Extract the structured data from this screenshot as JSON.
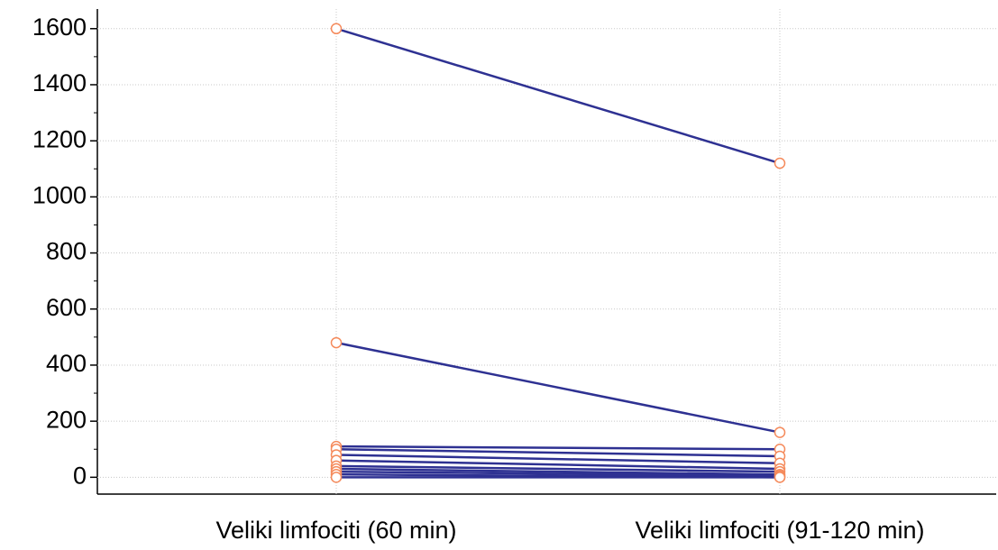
{
  "chart_data": {
    "type": "line",
    "categories": [
      "Veliki limfociti (60 min)",
      "Veliki limfociti (91-120 min)"
    ],
    "series": [
      {
        "color": "#2e3192",
        "values": [
          1600,
          1120
        ]
      },
      {
        "color": "#2e3192",
        "values": [
          480,
          160
        ]
      },
      {
        "color": "#2e3192",
        "values": [
          110,
          100
        ]
      },
      {
        "color": "#2e3192",
        "values": [
          100,
          75
        ]
      },
      {
        "color": "#2e3192",
        "values": [
          80,
          50
        ]
      },
      {
        "color": "#2e3192",
        "values": [
          60,
          30
        ]
      },
      {
        "color": "#2e3192",
        "values": [
          40,
          20
        ]
      },
      {
        "color": "#2e3192",
        "values": [
          30,
          10
        ]
      },
      {
        "color": "#2e3192",
        "values": [
          20,
          5
        ]
      },
      {
        "color": "#2e3192",
        "values": [
          10,
          0
        ]
      },
      {
        "color": "#2e3192",
        "values": [
          0,
          0
        ]
      }
    ],
    "marker_color": "#f58a5b",
    "ylim": [
      -60,
      1670
    ],
    "yticks": [
      0,
      200,
      400,
      600,
      800,
      1000,
      1200,
      1400,
      1600
    ],
    "yminorticks": [
      100,
      300,
      500,
      700,
      900,
      1100,
      1300,
      1500
    ],
    "grid": true
  }
}
